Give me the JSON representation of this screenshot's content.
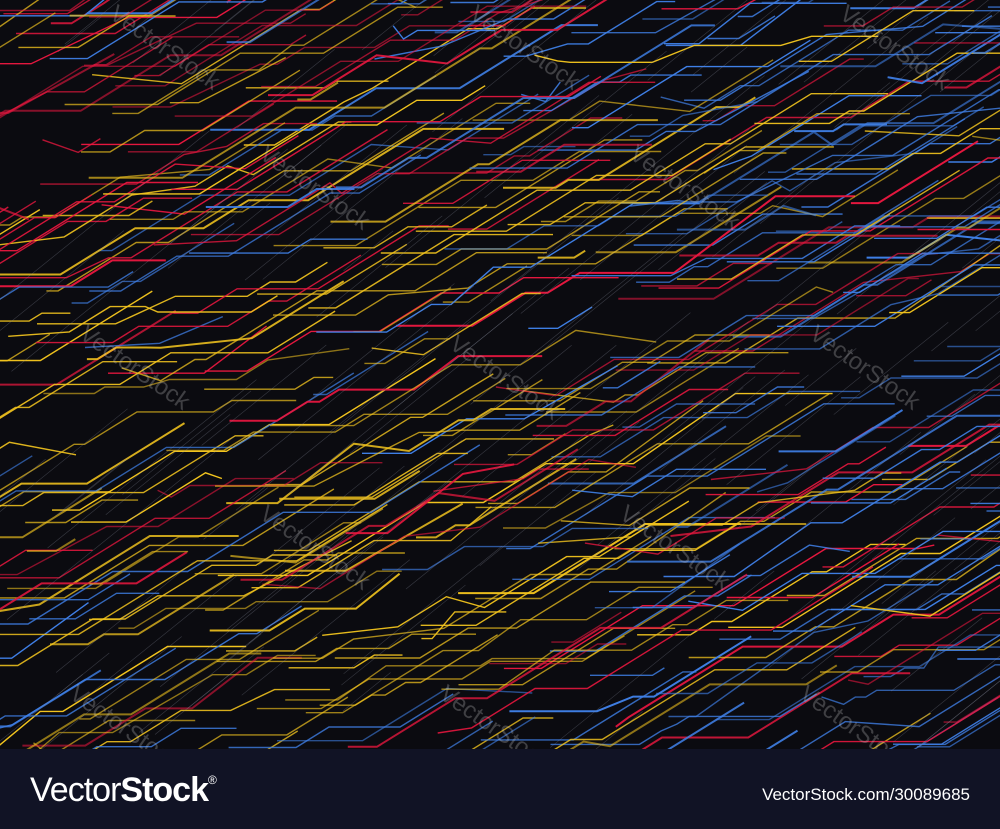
{
  "watermark": "VectorStock",
  "banner": {
    "logo_light": "Vector",
    "logo_bold": "Stock",
    "logo_mark": "®",
    "image_id": "VectorStock.com/30089685"
  },
  "colors": {
    "background": "#0b0b10",
    "banner": "#111325",
    "yellow": "#f2c41e",
    "red": "#e8173f",
    "blue": "#3f7fe6"
  }
}
